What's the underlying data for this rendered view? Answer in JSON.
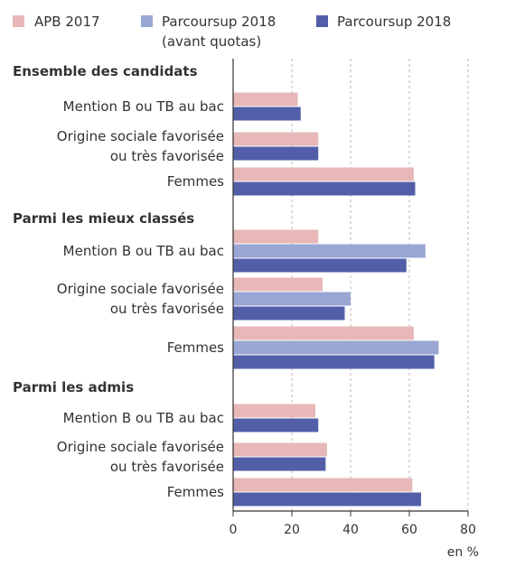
{
  "chart_data": {
    "type": "bar",
    "orientation": "horizontal",
    "series": [
      {
        "name": "APB 2017",
        "name_line2": "",
        "color": "#e8b8b8"
      },
      {
        "name": "Parcoursup 2018",
        "name_line2": "(avant quotas)",
        "color": "#9aa7d4"
      },
      {
        "name": "Parcoursup 2018",
        "name_line2": "",
        "color": "#525fa8"
      }
    ],
    "groups": [
      {
        "title": "Ensemble des candidats",
        "categories": [
          {
            "label": [
              "Mention B ou TB au bac"
            ],
            "values": [
              22,
              null,
              23
            ]
          },
          {
            "label": [
              "Origine sociale favorisée",
              "ou très favorisée"
            ],
            "values": [
              29,
              null,
              29
            ]
          },
          {
            "label": [
              "Femmes"
            ],
            "values": [
              61.5,
              null,
              62
            ]
          }
        ]
      },
      {
        "title": "Parmi les mieux classés",
        "categories": [
          {
            "label": [
              "Mention B ou TB au bac"
            ],
            "values": [
              29,
              65.5,
              59
            ]
          },
          {
            "label": [
              "Origine sociale favorisée",
              "ou très favorisée"
            ],
            "values": [
              30.5,
              40,
              38
            ]
          },
          {
            "label": [
              "Femmes"
            ],
            "values": [
              61.5,
              70,
              68.5
            ]
          }
        ]
      },
      {
        "title": "Parmi les admis",
        "categories": [
          {
            "label": [
              "Mention B ou TB au bac"
            ],
            "values": [
              28,
              null,
              29
            ]
          },
          {
            "label": [
              "Origine sociale favorisée",
              "ou très favorisée"
            ],
            "values": [
              32,
              null,
              31.5
            ]
          },
          {
            "label": [
              "Femmes"
            ],
            "values": [
              61,
              null,
              64
            ]
          }
        ]
      }
    ],
    "xlim": [
      0,
      80
    ],
    "xticks": [
      0,
      20,
      40,
      60,
      80
    ],
    "xlabel": "en %",
    "legend_position": "top"
  }
}
